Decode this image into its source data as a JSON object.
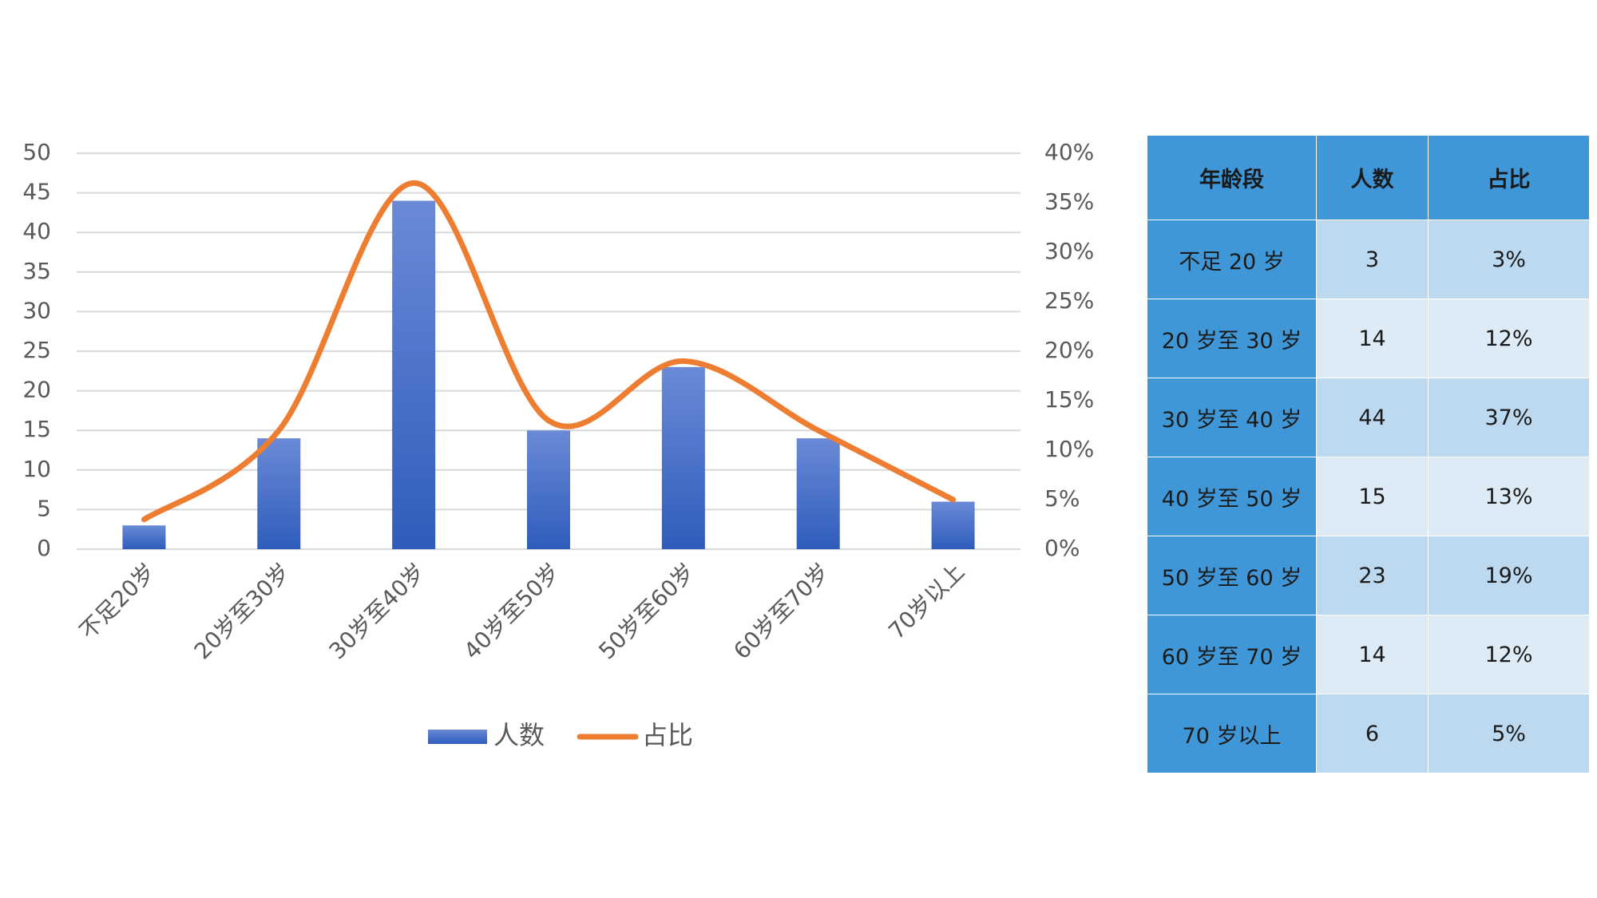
{
  "chart_data": {
    "type": "bar-line",
    "categories": [
      "不足20岁",
      "20岁至30岁",
      "30岁至40岁",
      "40岁至50岁",
      "50岁至60岁",
      "60岁至70岁",
      "70岁以上"
    ],
    "series": [
      {
        "name": "人数",
        "type": "bar",
        "color": "#4472c4",
        "values": [
          3,
          14,
          44,
          15,
          23,
          14,
          6
        ]
      },
      {
        "name": "占比",
        "type": "line",
        "color": "#ed7d31",
        "axis": "y2",
        "values": [
          3,
          12,
          37,
          13,
          19,
          12,
          5
        ]
      }
    ],
    "ylim": [
      0,
      50
    ],
    "yticks": [
      0,
      5,
      10,
      15,
      20,
      25,
      30,
      35,
      40,
      45,
      50
    ],
    "y2lim": [
      0,
      40
    ],
    "y2ticks": [
      {
        "value": 0,
        "label": "0%"
      },
      {
        "value": 5,
        "label": "5%"
      },
      {
        "value": 10,
        "label": "10%"
      },
      {
        "value": 15,
        "label": "15%"
      },
      {
        "value": 20,
        "label": "20%"
      },
      {
        "value": 25,
        "label": "25%"
      },
      {
        "value": 30,
        "label": "30%"
      },
      {
        "value": 35,
        "label": "35%"
      },
      {
        "value": 40,
        "label": "40%"
      }
    ],
    "grid": true,
    "legend": "bottom"
  },
  "table": {
    "header": [
      "年龄段",
      "人数",
      "占比"
    ],
    "rows": [
      [
        "不足 20 岁",
        "3",
        "3%"
      ],
      [
        "20 岁至 30 岁",
        "14",
        "12%"
      ],
      [
        "30 岁至 40 岁",
        "44",
        "37%"
      ],
      [
        "40 岁至 50 岁",
        "15",
        "13%"
      ],
      [
        "50 岁至 60 岁",
        "23",
        "19%"
      ],
      [
        "60 岁至 70 岁",
        "14",
        "12%"
      ],
      [
        "70 岁以上",
        "6",
        "5%"
      ]
    ]
  }
}
